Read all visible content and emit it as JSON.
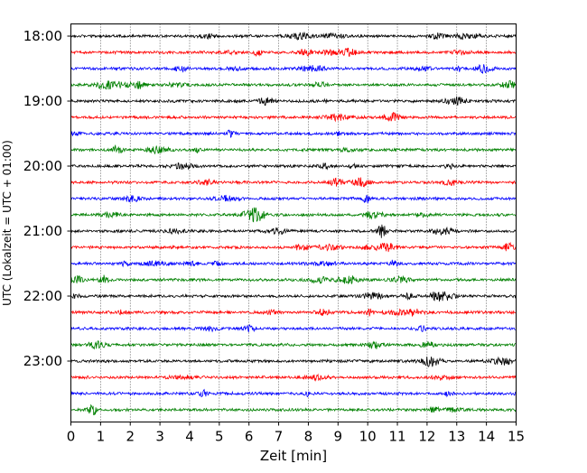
{
  "chart_data": {
    "type": "line",
    "title": "",
    "xlabel": "Zeit  [min]",
    "ylabel": "UTC (Lokalzeit = UTC + 01:00)",
    "xlim": [
      0,
      15
    ],
    "x_ticks": [
      "0",
      "1",
      "2",
      "3",
      "4",
      "5",
      "6",
      "7",
      "8",
      "9",
      "10",
      "11",
      "12",
      "13",
      "14",
      "15"
    ],
    "y_tick_labels": [
      "18:00",
      "19:00",
      "20:00",
      "21:00",
      "22:00",
      "23:00"
    ],
    "grid": "vertical dotted at each minute",
    "trace_colors": [
      "#000000",
      "#ff0000",
      "#0000ff",
      "#008000"
    ],
    "rows": [
      {
        "start": "18:00",
        "color": "#000000"
      },
      {
        "start": "18:15",
        "color": "#ff0000"
      },
      {
        "start": "18:30",
        "color": "#0000ff"
      },
      {
        "start": "18:45",
        "color": "#008000"
      },
      {
        "start": "19:00",
        "color": "#000000"
      },
      {
        "start": "19:15",
        "color": "#ff0000"
      },
      {
        "start": "19:30",
        "color": "#0000ff"
      },
      {
        "start": "19:45",
        "color": "#008000"
      },
      {
        "start": "20:00",
        "color": "#000000"
      },
      {
        "start": "20:15",
        "color": "#ff0000"
      },
      {
        "start": "20:30",
        "color": "#0000ff"
      },
      {
        "start": "20:45",
        "color": "#008000"
      },
      {
        "start": "21:00",
        "color": "#000000"
      },
      {
        "start": "21:15",
        "color": "#ff0000"
      },
      {
        "start": "21:30",
        "color": "#0000ff"
      },
      {
        "start": "21:45",
        "color": "#008000"
      },
      {
        "start": "22:00",
        "color": "#000000"
      },
      {
        "start": "22:15",
        "color": "#ff0000"
      },
      {
        "start": "22:30",
        "color": "#0000ff"
      },
      {
        "start": "22:45",
        "color": "#008000"
      },
      {
        "start": "23:00",
        "color": "#000000"
      },
      {
        "start": "23:15",
        "color": "#ff0000"
      },
      {
        "start": "23:30",
        "color": "#0000ff"
      },
      {
        "start": "23:45",
        "color": "#008000"
      }
    ]
  }
}
